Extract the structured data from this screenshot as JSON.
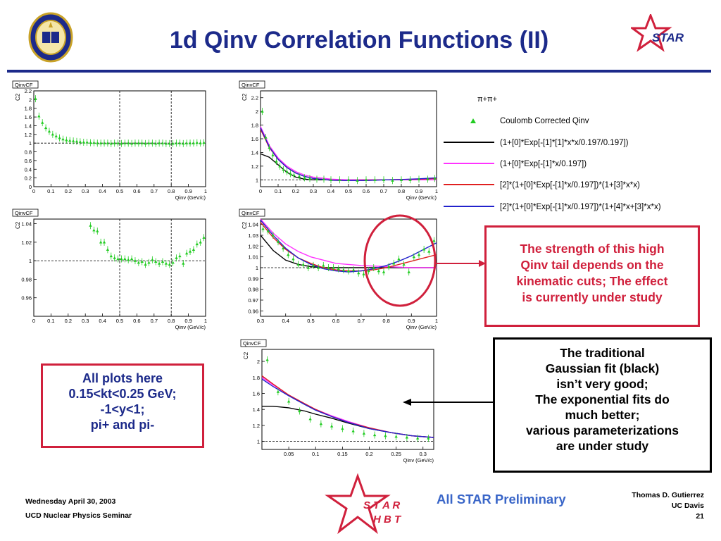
{
  "slide": {
    "title": "1d Qinv Correlation Functions (II)",
    "star_logo_text": "STAR",
    "hbt_logo_line1": "S T A R",
    "hbt_logo_line2": "H B T"
  },
  "plot_common": {
    "header_label": "QinvCF",
    "ylabel": "C2",
    "xlabel": "Qinv (GeV/c)"
  },
  "legend": {
    "particle": "π+π+",
    "entries": [
      {
        "label": "Coulomb Corrected Qinv",
        "color": "#22cc22",
        "marker": "triangle"
      },
      {
        "label": "(1+[0]*Exp[-[1]*[1]*x*x/0.197/0.197])",
        "color": "#000000"
      },
      {
        "label": "(1+[0]*Exp[-[1]*x/0.197])",
        "color": "#ff33ff"
      },
      {
        "label": "[2]*(1+[0]*Exp[-[1]*x/0.197])*(1+[3]*x*x)",
        "color": "#e02020"
      },
      {
        "label": "[2]*(1+[0]*Exp[-[1]*x/0.197])*(1+[4]*x+[3]*x*x)",
        "color": "#2222cc"
      }
    ]
  },
  "callouts": {
    "red_box": [
      "The strength of this high",
      "Qinv tail depends on the",
      "kinematic cuts; The effect",
      "is currently under study"
    ],
    "black_box": [
      "The traditional",
      "Gaussian fit (black)",
      "isn’t very good;",
      "The exponential fits do",
      "much better;",
      "various parameterizations",
      "are under study"
    ],
    "left_box": [
      "All plots here",
      "0.15<kt<0.25 GeV;",
      "-1<y<1;",
      "pi+ and pi-"
    ]
  },
  "footer": {
    "date": "Wednesday April 30, 2003",
    "seminar": "UCD Nuclear Physics Seminar",
    "preliminary": "All STAR Preliminary",
    "author": "Thomas D. Gutierrez",
    "institution": "UC Davis",
    "page": "21"
  },
  "colors": {
    "title": "#1c2a8a",
    "callout_red": "#d0203c",
    "preliminary": "#3a66c8",
    "data_marker": "#22cc22"
  },
  "chart_data": [
    {
      "id": "p1",
      "type": "scatter",
      "xlabel": "Qinv (GeV/c)",
      "ylabel": "C2",
      "xlim": [
        0,
        1
      ],
      "ylim": [
        0,
        2.2
      ],
      "xticks": [
        0,
        0.1,
        0.2,
        0.3,
        0.4,
        0.5,
        0.6,
        0.7,
        0.8,
        0.9,
        1
      ],
      "yticks": [
        0,
        0.2,
        0.4,
        0.6,
        0.8,
        1,
        1.2,
        1.4,
        1.6,
        1.8,
        2,
        2.2
      ],
      "baseline": 1,
      "vlines": [
        0.5,
        0.8
      ],
      "series": [
        {
          "x": [
            0.01,
            0.03,
            0.05,
            0.07,
            0.09,
            0.11,
            0.13,
            0.15,
            0.17,
            0.19,
            0.21,
            0.23,
            0.25,
            0.27,
            0.29,
            0.31,
            0.33,
            0.35,
            0.37,
            0.39,
            0.41,
            0.43,
            0.45,
            0.47,
            0.49,
            0.51,
            0.53,
            0.55,
            0.57,
            0.59,
            0.61,
            0.63,
            0.65,
            0.67,
            0.69,
            0.71,
            0.73,
            0.75,
            0.77,
            0.79,
            0.81,
            0.83,
            0.85,
            0.87,
            0.89,
            0.91,
            0.93,
            0.95,
            0.97,
            0.99
          ],
          "y": [
            2.02,
            1.62,
            1.47,
            1.35,
            1.27,
            1.2,
            1.16,
            1.12,
            1.09,
            1.07,
            1.06,
            1.05,
            1.04,
            1.03,
            1.02,
            1.02,
            1.01,
            1.01,
            1.0,
            1.0,
            1.0,
            1.0,
            0.99,
            1.0,
            1.0,
            0.99,
            1.0,
            1.0,
            0.99,
            1.0,
            1.0,
            1.0,
            0.99,
            1.0,
            1.0,
            0.99,
            1.0,
            1.0,
            0.99,
            0.99,
            0.99,
            1.0,
            1.0,
            0.99,
            1.0,
            1.0,
            1.0,
            1.01,
            1.0,
            1.01
          ]
        }
      ]
    },
    {
      "id": "p2",
      "type": "line",
      "xlabel": "Qinv (GeV/c)",
      "ylabel": "C2",
      "xlim": [
        0,
        1
      ],
      "ylim": [
        0.9,
        2.3
      ],
      "xticks": [
        0,
        0.1,
        0.2,
        0.3,
        0.4,
        0.5,
        0.6,
        0.7,
        0.8,
        0.9,
        1
      ],
      "yticks": [
        1,
        1.2,
        1.4,
        1.6,
        1.8,
        2,
        2.2
      ],
      "baseline": 1,
      "series": [
        {
          "x": [
            0.01,
            0.03,
            0.05,
            0.07,
            0.09,
            0.11,
            0.13,
            0.15,
            0.17,
            0.19,
            0.22,
            0.25,
            0.28,
            0.32,
            0.36,
            0.4,
            0.45,
            0.5,
            0.55,
            0.6,
            0.65,
            0.7,
            0.75,
            0.8,
            0.85,
            0.9,
            0.95,
            0.99
          ],
          "y": [
            2.0,
            1.62,
            1.47,
            1.36,
            1.27,
            1.2,
            1.15,
            1.12,
            1.09,
            1.07,
            1.05,
            1.03,
            1.02,
            1.01,
            1.01,
            1.0,
            1.0,
            1.0,
            0.99,
            1.0,
            1.0,
            1.0,
            0.99,
            1.0,
            1.0,
            1.01,
            1.01,
            1.02
          ]
        }
      ],
      "fits": [
        {
          "name": "gauss",
          "color": "#000000",
          "x": [
            0,
            0.05,
            0.1,
            0.15,
            0.2,
            0.25,
            0.3,
            0.4,
            0.5,
            0.6,
            0.7,
            0.8,
            0.9,
            1.0
          ],
          "y": [
            1.38,
            1.33,
            1.22,
            1.11,
            1.04,
            1.01,
            1.0,
            1.0,
            1.0,
            1.0,
            1.0,
            1.0,
            1.0,
            1.0
          ]
        },
        {
          "name": "exp",
          "color": "#ff33ff",
          "x": [
            0,
            0.05,
            0.1,
            0.15,
            0.2,
            0.25,
            0.3,
            0.4,
            0.5,
            0.6,
            0.7,
            0.8,
            0.9,
            1.0
          ],
          "y": [
            1.78,
            1.5,
            1.32,
            1.2,
            1.12,
            1.07,
            1.04,
            1.01,
            1.0,
            1.0,
            1.0,
            1.0,
            1.0,
            1.0
          ]
        },
        {
          "name": "exp-quad",
          "color": "#e02020",
          "x": [
            0,
            0.05,
            0.1,
            0.15,
            0.2,
            0.25,
            0.3,
            0.4,
            0.5,
            0.6,
            0.7,
            0.8,
            0.9,
            1.0
          ],
          "y": [
            1.74,
            1.47,
            1.3,
            1.18,
            1.1,
            1.05,
            1.02,
            0.995,
            0.99,
            0.995,
            1.0,
            1.005,
            1.01,
            1.02
          ]
        },
        {
          "name": "exp-lin-quad",
          "color": "#2222cc",
          "x": [
            0,
            0.05,
            0.1,
            0.15,
            0.2,
            0.25,
            0.3,
            0.4,
            0.5,
            0.6,
            0.7,
            0.8,
            0.9,
            1.0
          ],
          "y": [
            1.76,
            1.48,
            1.3,
            1.18,
            1.1,
            1.05,
            1.02,
            0.995,
            0.99,
            0.99,
            1.0,
            1.005,
            1.015,
            1.03
          ]
        }
      ]
    },
    {
      "id": "p3",
      "type": "scatter",
      "xlabel": "Qinv (GeV/c)",
      "ylabel": "C2",
      "xlim": [
        0,
        1
      ],
      "ylim": [
        0.94,
        1.045
      ],
      "xticks": [
        0,
        0.1,
        0.2,
        0.3,
        0.4,
        0.5,
        0.6,
        0.7,
        0.8,
        0.9,
        1
      ],
      "yticks": [
        0.96,
        0.98,
        1,
        1.02,
        1.04
      ],
      "baseline": 1,
      "vlines": [
        0.5,
        0.8
      ],
      "series": [
        {
          "x": [
            0.33,
            0.35,
            0.37,
            0.39,
            0.41,
            0.43,
            0.45,
            0.47,
            0.49,
            0.51,
            0.53,
            0.55,
            0.57,
            0.59,
            0.61,
            0.63,
            0.65,
            0.67,
            0.69,
            0.71,
            0.73,
            0.75,
            0.77,
            0.79,
            0.81,
            0.83,
            0.85,
            0.87,
            0.89,
            0.91,
            0.93,
            0.95,
            0.97,
            0.99
          ],
          "y": [
            1.038,
            1.033,
            1.032,
            1.02,
            1.02,
            1.012,
            1.005,
            1.003,
            1.002,
            1.002,
            1.002,
            1.001,
            1.002,
            1.0,
            0.998,
            0.999,
            0.996,
            0.998,
            1.001,
            0.999,
            0.997,
            0.999,
            0.997,
            0.996,
            0.998,
            1.003,
            1.005,
            0.997,
            1.008,
            1.01,
            1.012,
            1.018,
            1.02,
            1.025
          ]
        }
      ]
    },
    {
      "id": "p4",
      "type": "line",
      "xlabel": "Qinv (GeV/c)",
      "ylabel": "C2",
      "xlim": [
        0.3,
        1
      ],
      "ylim": [
        0.955,
        1.045
      ],
      "xticks": [
        0.3,
        0.4,
        0.5,
        0.6,
        0.7,
        0.8,
        0.9,
        1
      ],
      "yticks": [
        0.96,
        0.97,
        0.98,
        0.99,
        1,
        1.01,
        1.02,
        1.03,
        1.04
      ],
      "baseline": 1,
      "series": [
        {
          "x": [
            0.31,
            0.33,
            0.35,
            0.37,
            0.39,
            0.41,
            0.43,
            0.45,
            0.47,
            0.49,
            0.51,
            0.53,
            0.55,
            0.57,
            0.59,
            0.61,
            0.63,
            0.65,
            0.67,
            0.69,
            0.71,
            0.73,
            0.75,
            0.77,
            0.79,
            0.81,
            0.83,
            0.85,
            0.87,
            0.89,
            0.91,
            0.93,
            0.95,
            0.97,
            0.99
          ],
          "y": [
            1.036,
            1.034,
            1.03,
            1.024,
            1.018,
            1.012,
            1.008,
            1.003,
            1.003,
            1.0,
            1.002,
            1.0,
            1.002,
            1.0,
            1.0,
            0.999,
            0.998,
            0.997,
            0.998,
            0.995,
            0.994,
            0.997,
            1.0,
            0.997,
            0.996,
            1.001,
            1.004,
            1.008,
            1.003,
            0.996,
            1.01,
            1.012,
            1.017,
            1.015,
            1.025
          ]
        }
      ],
      "fits": [
        {
          "name": "gauss",
          "color": "#000000",
          "x": [
            0.3,
            0.35,
            0.4,
            0.45,
            0.5,
            0.55,
            0.6,
            0.7,
            0.8,
            0.9,
            1.0
          ],
          "y": [
            1.03,
            1.016,
            1.007,
            1.003,
            1.001,
            1.0,
            1.0,
            1.0,
            1.0,
            1.0,
            1.0
          ]
        },
        {
          "name": "exp",
          "color": "#ff33ff",
          "x": [
            0.3,
            0.35,
            0.4,
            0.45,
            0.5,
            0.55,
            0.6,
            0.65,
            0.7,
            0.8,
            0.9,
            1.0
          ],
          "y": [
            1.045,
            1.032,
            1.022,
            1.015,
            1.01,
            1.007,
            1.004,
            1.003,
            1.002,
            1.001,
            1.0,
            1.0
          ]
        },
        {
          "name": "exp-quad",
          "color": "#e02020",
          "x": [
            0.3,
            0.35,
            0.4,
            0.45,
            0.5,
            0.55,
            0.6,
            0.65,
            0.7,
            0.75,
            0.8,
            0.85,
            0.9,
            0.95,
            1.0
          ],
          "y": [
            1.042,
            1.028,
            1.017,
            1.009,
            1.004,
            1.0,
            0.998,
            0.997,
            0.997,
            0.998,
            1.0,
            1.003,
            1.006,
            1.009,
            1.012
          ]
        },
        {
          "name": "exp-lin-quad",
          "color": "#2222cc",
          "x": [
            0.3,
            0.35,
            0.4,
            0.45,
            0.5,
            0.55,
            0.6,
            0.65,
            0.7,
            0.75,
            0.8,
            0.85,
            0.9,
            0.95,
            1.0
          ],
          "y": [
            1.044,
            1.03,
            1.018,
            1.009,
            1.003,
            0.999,
            0.997,
            0.996,
            0.997,
            0.999,
            1.002,
            1.006,
            1.011,
            1.017,
            1.023
          ]
        }
      ]
    },
    {
      "id": "p5",
      "type": "line",
      "xlabel": "Qinv (GeV/c)",
      "ylabel": "C2",
      "xlim": [
        0,
        0.32
      ],
      "ylim": [
        0.9,
        2.15
      ],
      "xticks": [
        0.05,
        0.1,
        0.15,
        0.2,
        0.25,
        0.3
      ],
      "yticks": [
        1,
        1.2,
        1.4,
        1.6,
        1.8,
        2
      ],
      "baseline": 1,
      "series": [
        {
          "x": [
            0.01,
            0.03,
            0.05,
            0.07,
            0.09,
            0.11,
            0.13,
            0.15,
            0.17,
            0.19,
            0.21,
            0.23,
            0.25,
            0.27,
            0.29,
            0.31
          ],
          "y": [
            2.02,
            1.62,
            1.5,
            1.38,
            1.28,
            1.22,
            1.19,
            1.16,
            1.13,
            1.1,
            1.08,
            1.07,
            1.06,
            1.05,
            1.04,
            1.04
          ]
        }
      ],
      "fits": [
        {
          "name": "gauss",
          "color": "#000000",
          "x": [
            0,
            0.02,
            0.05,
            0.08,
            0.1,
            0.13,
            0.16,
            0.2,
            0.24,
            0.28,
            0.32
          ],
          "y": [
            1.44,
            1.44,
            1.42,
            1.38,
            1.34,
            1.29,
            1.23,
            1.16,
            1.11,
            1.07,
            1.05
          ]
        },
        {
          "name": "exp",
          "color": "#ff33ff",
          "x": [
            0,
            0.02,
            0.05,
            0.08,
            0.1,
            0.13,
            0.16,
            0.2,
            0.24,
            0.28,
            0.32
          ],
          "y": [
            1.8,
            1.71,
            1.58,
            1.47,
            1.4,
            1.32,
            1.25,
            1.17,
            1.11,
            1.07,
            1.05
          ]
        },
        {
          "name": "exp-quad",
          "color": "#e02020",
          "x": [
            0,
            0.02,
            0.05,
            0.08,
            0.1,
            0.13,
            0.16,
            0.2,
            0.24,
            0.28,
            0.32
          ],
          "y": [
            1.82,
            1.72,
            1.58,
            1.47,
            1.4,
            1.31,
            1.24,
            1.17,
            1.11,
            1.07,
            1.05
          ]
        },
        {
          "name": "exp-lin-quad",
          "color": "#2222cc",
          "x": [
            0,
            0.02,
            0.05,
            0.08,
            0.1,
            0.13,
            0.16,
            0.2,
            0.24,
            0.28,
            0.32
          ],
          "y": [
            1.78,
            1.69,
            1.57,
            1.46,
            1.39,
            1.31,
            1.24,
            1.16,
            1.11,
            1.07,
            1.05
          ]
        }
      ]
    }
  ]
}
